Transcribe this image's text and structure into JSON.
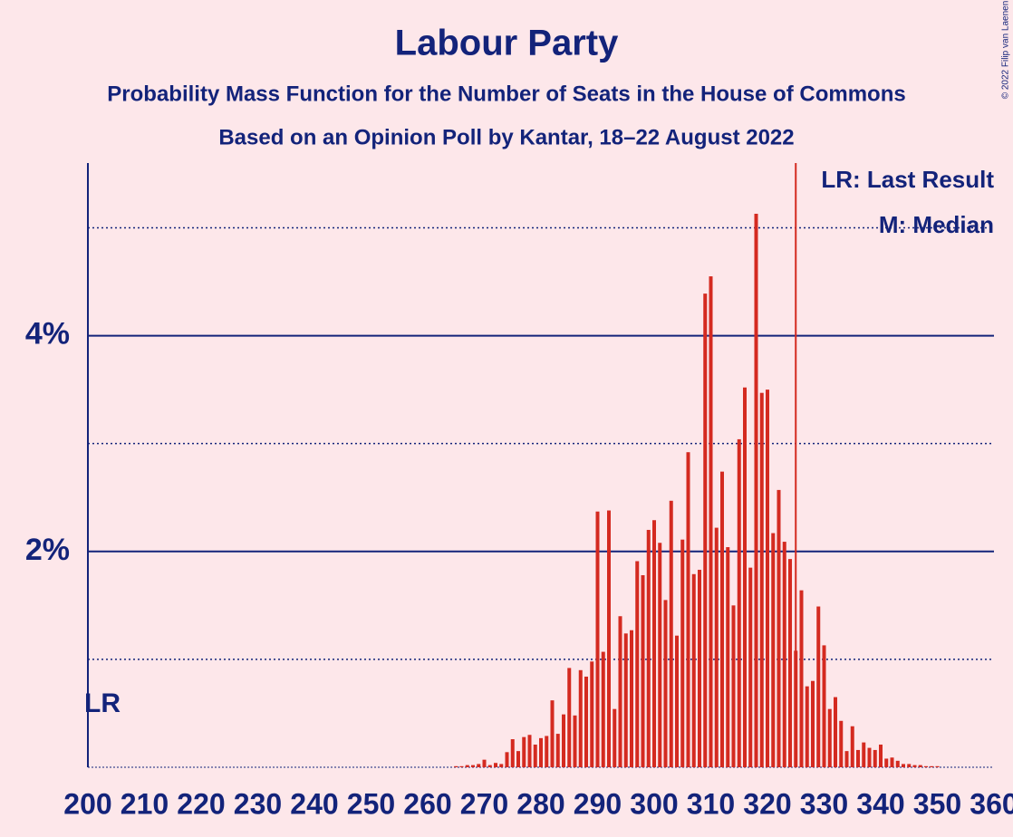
{
  "chart_data": {
    "type": "bar",
    "title": "Labour Party",
    "subtitle": "Probability Mass Function for the Number of Seats in the House of Commons",
    "subtitle2": "Based on an Opinion Poll by Kantar, 18–22 August 2022",
    "legend": [
      "LR: Last Result",
      "M: Median"
    ],
    "copyright": "© 2022 Filip van Laenen",
    "annotations": [
      {
        "text": "LR",
        "x": 200
      }
    ],
    "vline": 325,
    "color": "#d42a20",
    "x": [
      260,
      261,
      262,
      263,
      264,
      265,
      266,
      267,
      268,
      269,
      270,
      271,
      272,
      273,
      274,
      275,
      276,
      277,
      278,
      279,
      280,
      281,
      282,
      283,
      284,
      285,
      286,
      287,
      288,
      289,
      290,
      291,
      292,
      293,
      294,
      295,
      296,
      297,
      298,
      299,
      300,
      301,
      302,
      303,
      304,
      305,
      306,
      307,
      308,
      309,
      310,
      311,
      312,
      313,
      314,
      315,
      316,
      317,
      318,
      319,
      320,
      321,
      322,
      323,
      324,
      325,
      326,
      327,
      328,
      329,
      330,
      331,
      332,
      333,
      334,
      335,
      336,
      337,
      338,
      339,
      340,
      341,
      342,
      343,
      344,
      345,
      346,
      347,
      348,
      349,
      350,
      351,
      352,
      353,
      354,
      355
    ],
    "values": [
      0,
      0,
      0,
      0,
      0,
      0.01,
      0.01,
      0.02,
      0.02,
      0.03,
      0.07,
      0.02,
      0.04,
      0.03,
      0.14,
      0.26,
      0.15,
      0.28,
      0.3,
      0.21,
      0.27,
      0.29,
      0.62,
      0.31,
      0.49,
      0.92,
      0.48,
      0.9,
      0.84,
      0.98,
      2.37,
      1.07,
      2.38,
      0.54,
      1.4,
      1.24,
      1.27,
      1.91,
      1.78,
      2.2,
      2.29,
      2.08,
      1.55,
      2.47,
      1.22,
      2.11,
      2.92,
      1.79,
      1.83,
      4.39,
      4.55,
      2.22,
      2.74,
      2.04,
      1.5,
      3.04,
      3.52,
      1.85,
      5.13,
      3.47,
      3.5,
      2.17,
      2.57,
      2.09,
      1.93,
      1.08,
      1.64,
      0.75,
      0.8,
      1.49,
      1.13,
      0.54,
      0.65,
      0.43,
      0.15,
      0.38,
      0.16,
      0.23,
      0.18,
      0.16,
      0.21,
      0.08,
      0.09,
      0.06,
      0.03,
      0.03,
      0.02,
      0.02,
      0.01,
      0.01,
      0.01,
      0,
      0,
      0,
      0,
      0
    ],
    "xlim": [
      200,
      360
    ],
    "xticks": [
      200,
      210,
      220,
      230,
      240,
      250,
      260,
      270,
      280,
      290,
      300,
      310,
      320,
      330,
      340,
      350,
      360
    ],
    "ylim": [
      0,
      5.6
    ],
    "yticks": [
      {
        "value": 2,
        "label": "2%"
      },
      {
        "value": 4,
        "label": "4%"
      }
    ],
    "minor_grid": [
      1,
      3,
      5
    ]
  }
}
